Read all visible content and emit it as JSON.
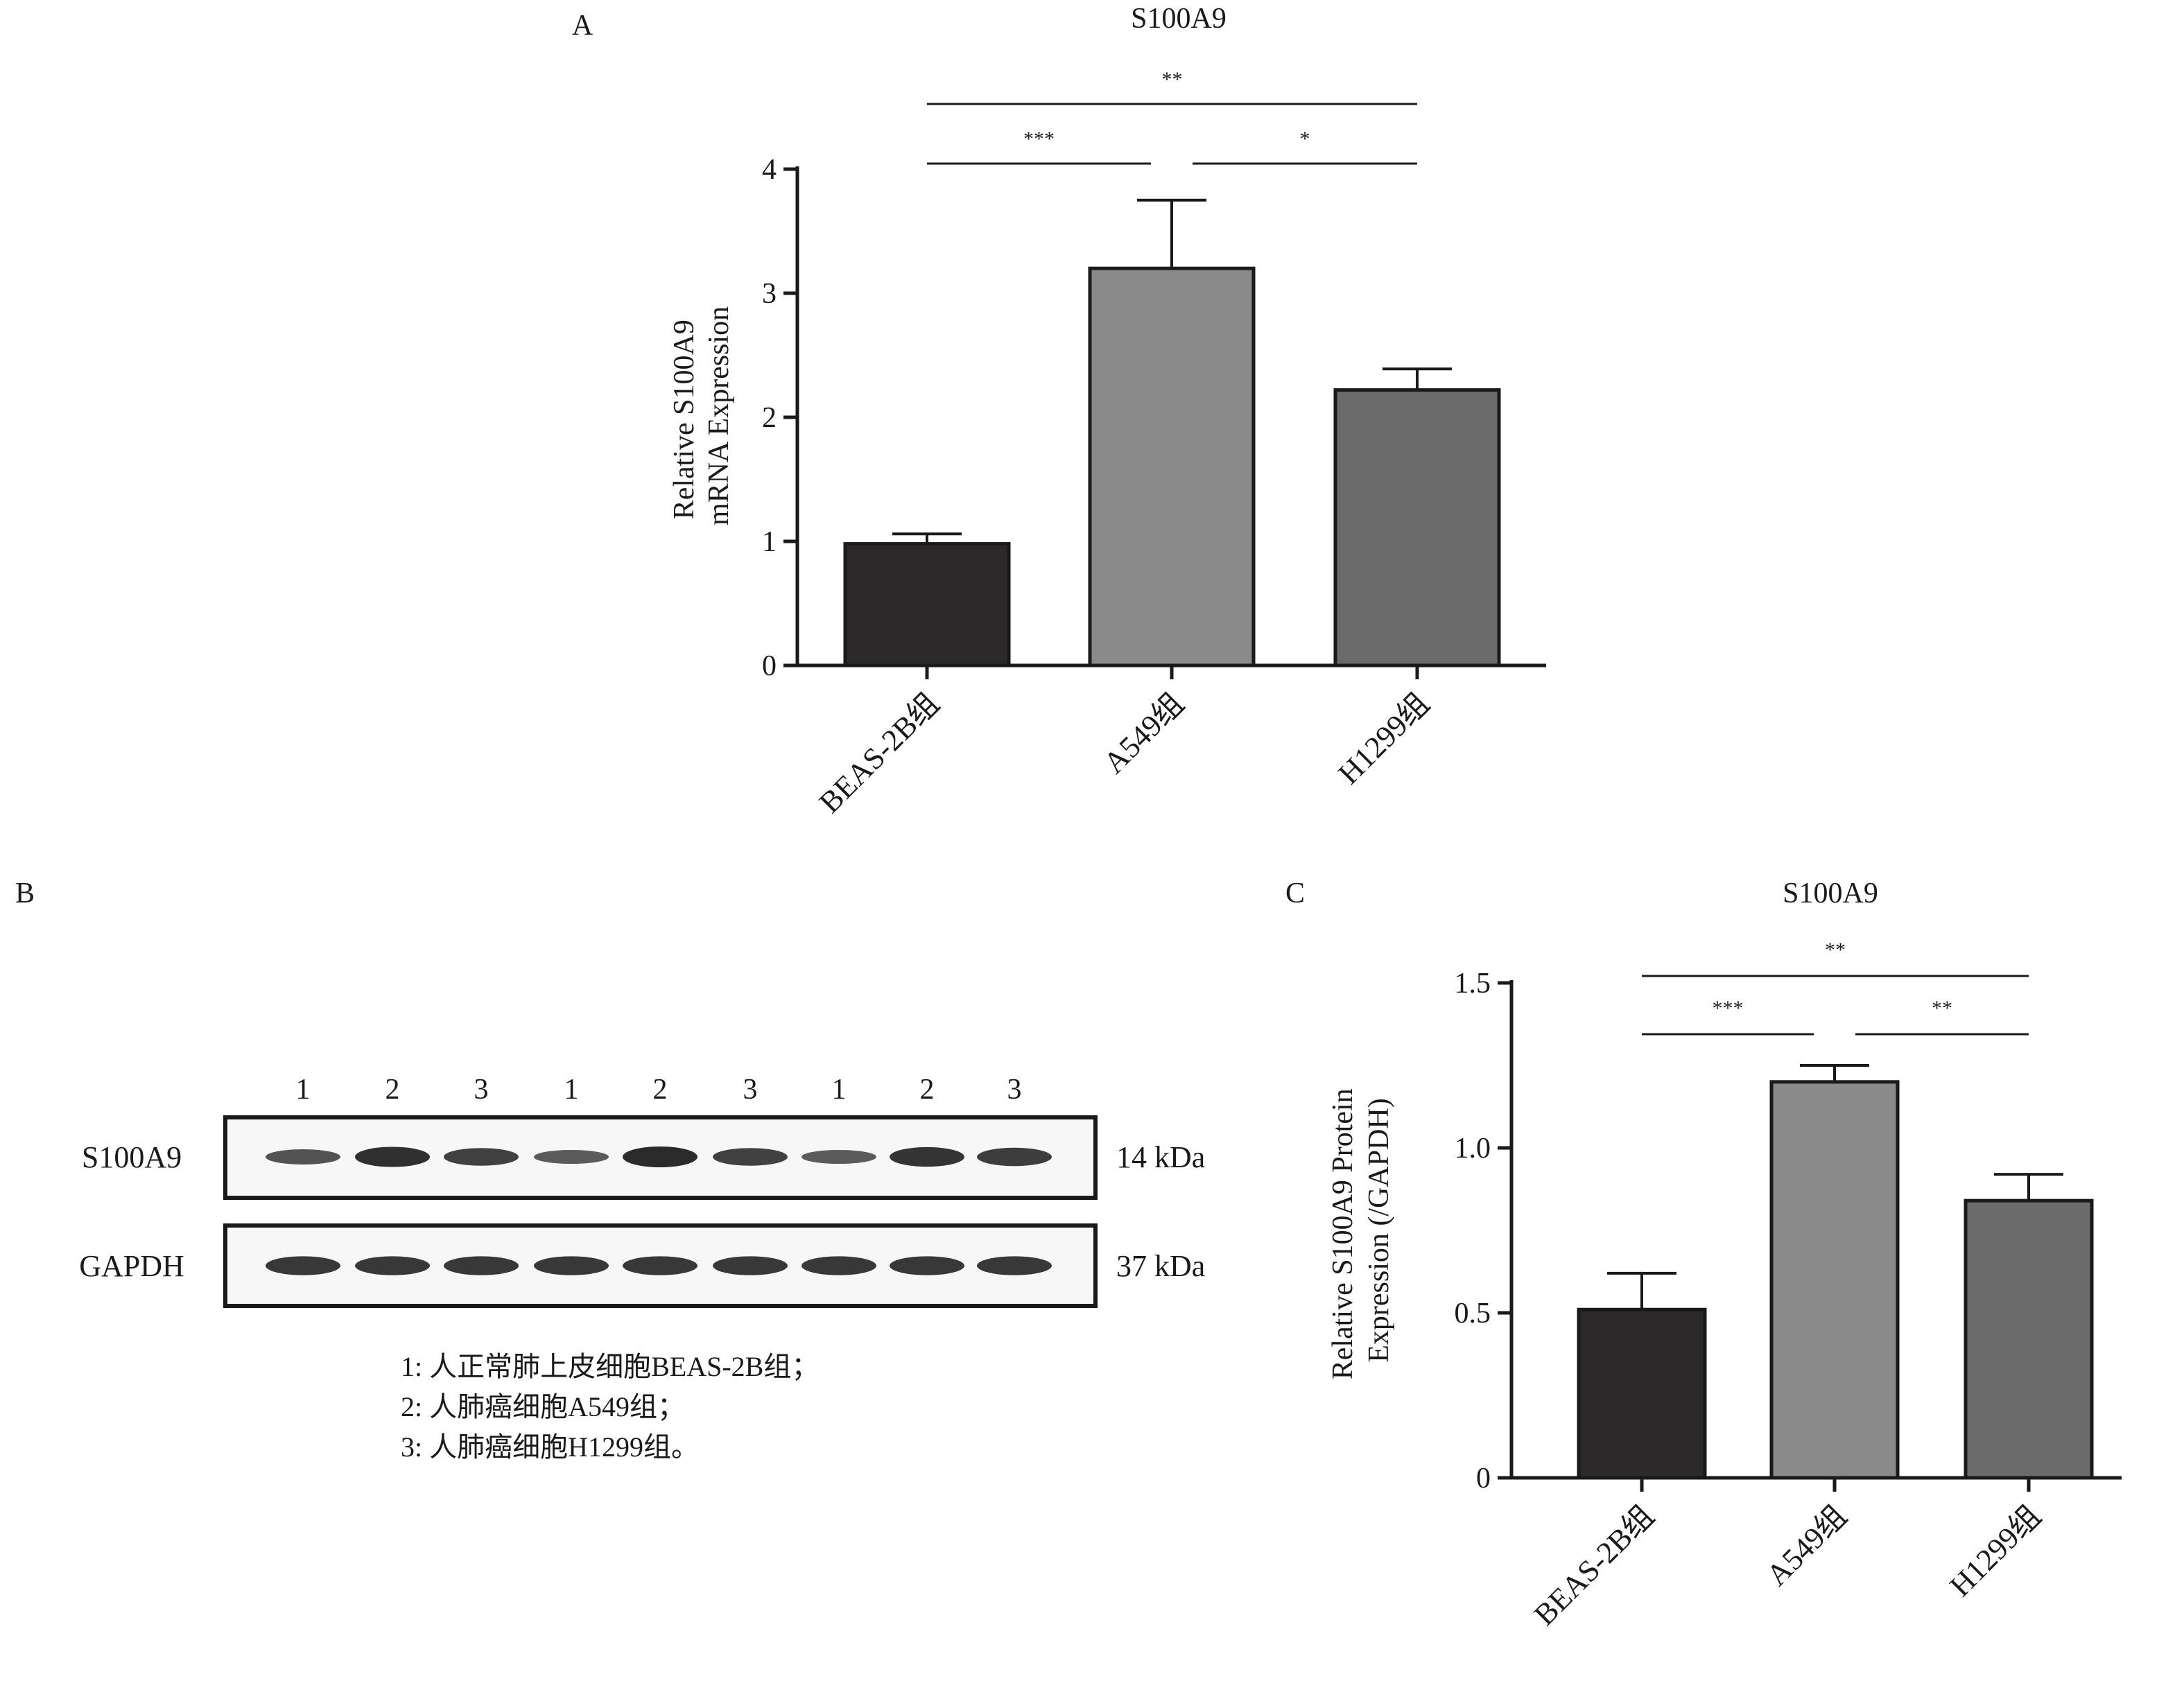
{
  "panels": {
    "a": {
      "letter": "A"
    },
    "b": {
      "letter": "B"
    },
    "c": {
      "letter": "C"
    }
  },
  "chart_data": [
    {
      "id": "A",
      "type": "bar",
      "title": "S100A9",
      "ylabel_lines": [
        "Relative S100A9",
        "mRNA Expression"
      ],
      "xlabel": "",
      "categories": [
        "BEAS-2B组",
        "A549组",
        "H1299组"
      ],
      "values": [
        0.98,
        3.2,
        2.22
      ],
      "errors": [
        0.08,
        0.55,
        0.17
      ],
      "ylim": [
        0,
        4
      ],
      "yticks": [
        0,
        1,
        2,
        3,
        4
      ],
      "ytick_labels": [
        "0",
        "1",
        "2",
        "3",
        "4"
      ],
      "colors": [
        "#2b292a",
        "#8a8a8a",
        "#6b6b6b"
      ],
      "grid": false,
      "significance": [
        {
          "from": 0,
          "to": 2,
          "label": "**"
        },
        {
          "from": 0,
          "to": 1,
          "label": "***"
        },
        {
          "from": 1,
          "to": 2,
          "label": "*"
        }
      ]
    },
    {
      "id": "B",
      "type": "blot",
      "lane_labels": [
        "1",
        "2",
        "3",
        "1",
        "2",
        "3",
        "1",
        "2",
        "3"
      ],
      "rows": [
        {
          "name": "S100A9",
          "size": "14 kDa",
          "intensity": [
            0.55,
            0.95,
            0.75,
            0.45,
            1.0,
            0.75,
            0.45,
            0.9,
            0.8
          ]
        },
        {
          "name": "GAPDH",
          "size": "37 kDa",
          "intensity": [
            0.85,
            0.85,
            0.85,
            0.85,
            0.85,
            0.85,
            0.85,
            0.85,
            0.85
          ]
        }
      ],
      "legend": [
        "1: 人正常肺上皮细胞BEAS-2B组；",
        "2: 人肺癌细胞A549组；",
        "3: 人肺癌细胞H1299组。"
      ]
    },
    {
      "id": "C",
      "type": "bar",
      "title": "S100A9",
      "ylabel_lines": [
        "Relative S100A9 Protein",
        "Expression (/GAPDH)"
      ],
      "xlabel": "",
      "categories": [
        "BEAS-2B组",
        "A549组",
        "H1299组"
      ],
      "values": [
        0.51,
        1.2,
        0.84
      ],
      "errors": [
        0.11,
        0.05,
        0.08
      ],
      "ylim": [
        0,
        1.5
      ],
      "yticks": [
        0,
        0.5,
        1.0,
        1.5
      ],
      "ytick_labels": [
        "0",
        "0.5",
        "1.0",
        "1.5"
      ],
      "colors": [
        "#2b292a",
        "#8a8a8a",
        "#6b6b6b"
      ],
      "grid": false,
      "significance": [
        {
          "from": 0,
          "to": 2,
          "label": "**"
        },
        {
          "from": 0,
          "to": 1,
          "label": "***"
        },
        {
          "from": 1,
          "to": 2,
          "label": "**"
        }
      ]
    }
  ]
}
